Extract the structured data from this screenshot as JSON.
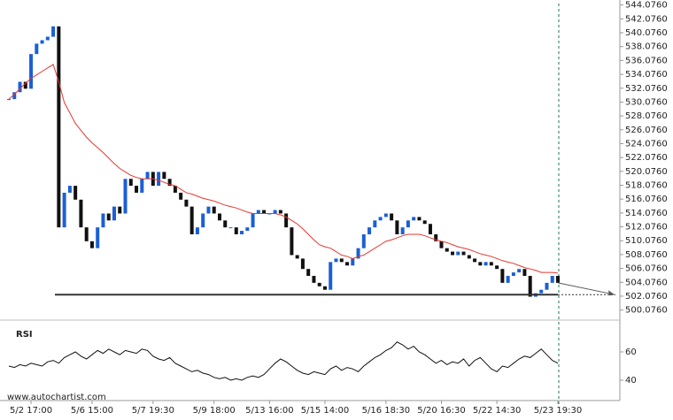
{
  "chart_data": [
    {
      "type": "candlestick",
      "categories": [
        null,
        null,
        null,
        null,
        "5/2 17:00",
        null,
        null,
        null,
        null,
        null,
        null,
        null,
        null,
        null,
        null,
        "5/6 15:00",
        null,
        null,
        null,
        null,
        null,
        null,
        null,
        null,
        null,
        null,
        "5/7 19:30",
        null,
        null,
        null,
        null,
        null,
        null,
        null,
        null,
        null,
        null,
        "5/9 18:00",
        null,
        null,
        null,
        null,
        null,
        null,
        null,
        null,
        null,
        "5/13 16:00",
        null,
        null,
        null,
        null,
        null,
        null,
        null,
        null,
        null,
        "5/15 14:00",
        null,
        null,
        null,
        null,
        null,
        null,
        null,
        null,
        null,
        null,
        "5/16 18:30",
        null,
        null,
        null,
        null,
        null,
        null,
        null,
        null,
        null,
        "5/20 16:30",
        null,
        null,
        null,
        null,
        null,
        null,
        null,
        null,
        null,
        "5/22 14:30",
        null,
        null,
        null,
        null,
        null,
        null,
        null,
        null,
        null,
        null,
        "5/23 19:30"
      ],
      "series": [
        {
          "color_up": "#1a5fd6",
          "color_down": "#111111",
          "values": [
            530.5,
            531.5,
            533,
            532,
            537,
            538.5,
            539,
            539.5,
            541,
            512,
            517,
            518,
            516,
            512,
            510,
            509,
            512,
            514,
            513,
            515,
            514,
            519,
            518,
            517,
            519,
            520,
            518,
            520,
            519,
            518,
            517,
            516,
            515,
            511,
            512,
            514,
            515,
            514,
            513,
            512,
            512,
            511,
            511.5,
            512,
            514,
            514.5,
            514,
            514,
            514.5,
            514,
            512,
            508,
            507.5,
            506,
            505,
            504,
            503.5,
            503,
            507,
            507.5,
            507,
            506.5,
            507.5,
            509,
            511,
            512,
            513,
            513.5,
            514,
            513,
            511,
            512,
            513,
            513.5,
            513,
            512.5,
            511,
            510,
            509,
            508.5,
            508,
            508.5,
            508,
            507.5,
            507,
            506.5,
            507,
            506.5,
            506,
            504,
            505,
            505.5,
            506,
            505,
            502,
            502.5,
            503,
            504,
            505,
            504
          ]
        },
        {
          "color": "#e8372f",
          "values": [
            530.5,
            531.2,
            532,
            532.8,
            533.5,
            534,
            534.5,
            535,
            535.5,
            533,
            530,
            528.5,
            527,
            526,
            525,
            524.2,
            523.5,
            522.8,
            522,
            521.2,
            520.5,
            520,
            519.5,
            519.2,
            519,
            519,
            519,
            518.8,
            518.5,
            518.2,
            518,
            517.5,
            517,
            516.8,
            516.5,
            516.2,
            516,
            515.8,
            515.5,
            515.2,
            515,
            514.8,
            514.5,
            514.2,
            514,
            514,
            514,
            514,
            514,
            513.8,
            513.5,
            513,
            512.5,
            511.8,
            511,
            510.2,
            509.5,
            509.2,
            509,
            508.5,
            508,
            507.8,
            507.5,
            507.8,
            508,
            508.5,
            509,
            509.5,
            510,
            510.2,
            510.5,
            510.8,
            511,
            511,
            511,
            510.8,
            510.5,
            510.2,
            510,
            509.8,
            509.5,
            509.2,
            509,
            508.8,
            508.5,
            508.2,
            508,
            507.8,
            507.5,
            507.2,
            507,
            506.8,
            506.5,
            506.2,
            506,
            505.8,
            505.5,
            505.5,
            505.5,
            505.4
          ]
        }
      ],
      "support_level": 502.3,
      "ylim": [
        499.2,
        544.8
      ],
      "yticks": [
        {
          "value": 500.076,
          "label": "500.0760"
        },
        {
          "value": 502.076,
          "label": "502.0760"
        },
        {
          "value": 504.076,
          "label": "504.0760"
        },
        {
          "value": 506.076,
          "label": "506.0760"
        },
        {
          "value": 508.076,
          "label": "508.0760"
        },
        {
          "value": 510.076,
          "label": "510.0760"
        },
        {
          "value": 512.076,
          "label": "512.0760"
        },
        {
          "value": 514.076,
          "label": "514.0760"
        },
        {
          "value": 516.076,
          "label": "516.0760"
        },
        {
          "value": 518.076,
          "label": "518.0760"
        },
        {
          "value": 520.076,
          "label": "520.0760"
        },
        {
          "value": 522.076,
          "label": "522.0760"
        },
        {
          "value": 524.076,
          "label": "524.0760"
        },
        {
          "value": 526.076,
          "label": "526.0760"
        },
        {
          "value": 528.076,
          "label": "528.0760"
        },
        {
          "value": 530.076,
          "label": "530.0760"
        },
        {
          "value": 532.076,
          "label": "532.0760"
        },
        {
          "value": 534.076,
          "label": "534.0760"
        },
        {
          "value": 536.076,
          "label": "536.0760"
        },
        {
          "value": 538.076,
          "label": "538.0760"
        },
        {
          "value": 540.076,
          "label": "540.0760"
        },
        {
          "value": 542.076,
          "label": "542.0760"
        },
        {
          "value": 544.076,
          "label": "544.0760"
        }
      ],
      "source": "www.autochartist.com"
    },
    {
      "type": "line",
      "title": "RSI",
      "color": "#111111",
      "values": [
        50,
        49,
        51,
        50,
        52,
        51,
        50,
        53,
        54,
        52,
        56,
        58,
        60,
        57,
        55,
        58,
        61,
        59,
        62,
        60,
        58,
        61,
        60,
        59,
        62,
        61,
        57,
        55,
        54,
        56,
        52,
        50,
        48,
        46,
        47,
        45,
        44,
        42,
        41,
        42,
        40,
        41,
        40,
        42,
        43,
        42,
        44,
        48,
        52,
        55,
        53,
        50,
        47,
        45,
        44,
        46,
        45,
        44,
        48,
        50,
        47,
        49,
        48,
        46,
        50,
        53,
        56,
        58,
        61,
        63,
        67,
        65,
        62,
        64,
        60,
        58,
        55,
        52,
        54,
        51,
        53,
        52,
        55,
        50,
        54,
        56,
        52,
        48,
        46,
        50,
        49,
        52,
        55,
        57,
        56,
        59,
        62,
        58,
        54,
        52
      ],
      "ylim": [
        26.25,
        76.25
      ],
      "yticks": [
        40,
        60
      ]
    }
  ]
}
